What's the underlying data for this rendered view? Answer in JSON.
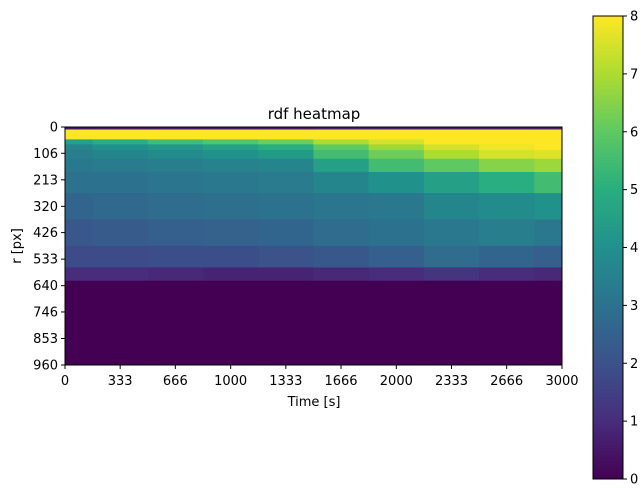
{
  "chart_data": {
    "type": "heatmap",
    "title": "rdf heatmap",
    "xlabel": "Time [s]",
    "ylabel": "r [px]",
    "xlim": [
      0,
      3000
    ],
    "ylim": [
      960,
      0
    ],
    "x_ticks": [
      "0",
      "333",
      "666",
      "1000",
      "1333",
      "1666",
      "2000",
      "2333",
      "2666",
      "3000"
    ],
    "y_ticks": [
      "0",
      "106",
      "213",
      "320",
      "426",
      "533",
      "640",
      "746",
      "853",
      "960"
    ],
    "colorbar": {
      "range": [
        0,
        8
      ],
      "ticks": [
        "0",
        "1",
        "2",
        "3",
        "4",
        "5",
        "6",
        "7",
        "8"
      ],
      "colormap": "viridis"
    },
    "time_samples": [
      0,
      333,
      666,
      1000,
      1333,
      1666,
      2000,
      2333,
      2666,
      3000
    ],
    "r_samples": [
      0,
      20,
      40,
      60,
      80,
      106,
      150,
      213,
      320,
      426,
      533,
      600,
      640,
      746,
      853,
      960
    ],
    "values": [
      [
        0.5,
        8.0,
        8.0,
        4.5,
        3.6,
        3.4,
        3.2,
        3.0,
        2.6,
        2.2,
        1.8,
        1.0,
        0.0,
        0.0,
        0.0,
        0.0
      ],
      [
        0.6,
        8.0,
        8.0,
        5.0,
        4.0,
        3.6,
        3.3,
        3.0,
        2.7,
        2.3,
        1.8,
        1.0,
        0.0,
        0.0,
        0.0,
        0.0
      ],
      [
        0.6,
        8.0,
        8.0,
        5.5,
        4.2,
        3.8,
        3.4,
        3.1,
        2.8,
        2.4,
        1.9,
        0.9,
        0.0,
        0.0,
        0.0,
        0.0
      ],
      [
        0.6,
        8.0,
        8.0,
        5.8,
        4.6,
        4.0,
        3.5,
        3.2,
        2.9,
        2.5,
        1.9,
        0.8,
        0.0,
        0.0,
        0.0,
        0.0
      ],
      [
        0.6,
        8.0,
        8.0,
        6.2,
        5.0,
        4.3,
        3.6,
        3.3,
        3.0,
        2.6,
        2.0,
        0.8,
        0.0,
        0.0,
        0.0,
        0.0
      ],
      [
        0.7,
        8.0,
        8.0,
        7.0,
        6.0,
        5.5,
        4.5,
        3.6,
        3.1,
        2.8,
        2.2,
        0.9,
        0.0,
        0.0,
        0.0,
        0.0
      ],
      [
        0.7,
        8.0,
        8.0,
        7.5,
        6.8,
        6.2,
        5.5,
        4.0,
        3.2,
        3.0,
        2.4,
        1.0,
        0.0,
        0.0,
        0.0,
        0.0
      ],
      [
        0.7,
        8.0,
        8.0,
        8.0,
        7.5,
        7.0,
        6.0,
        4.5,
        3.6,
        3.2,
        2.8,
        1.2,
        0.0,
        0.0,
        0.0,
        0.0
      ],
      [
        0.7,
        8.0,
        8.0,
        8.0,
        7.8,
        7.5,
        6.5,
        5.0,
        3.8,
        3.4,
        2.6,
        1.0,
        0.0,
        0.0,
        0.0,
        0.0
      ],
      [
        0.7,
        8.0,
        8.0,
        8.0,
        8.0,
        7.6,
        6.8,
        5.5,
        4.0,
        3.2,
        2.4,
        0.9,
        0.0,
        0.0,
        0.0,
        0.0
      ]
    ]
  }
}
